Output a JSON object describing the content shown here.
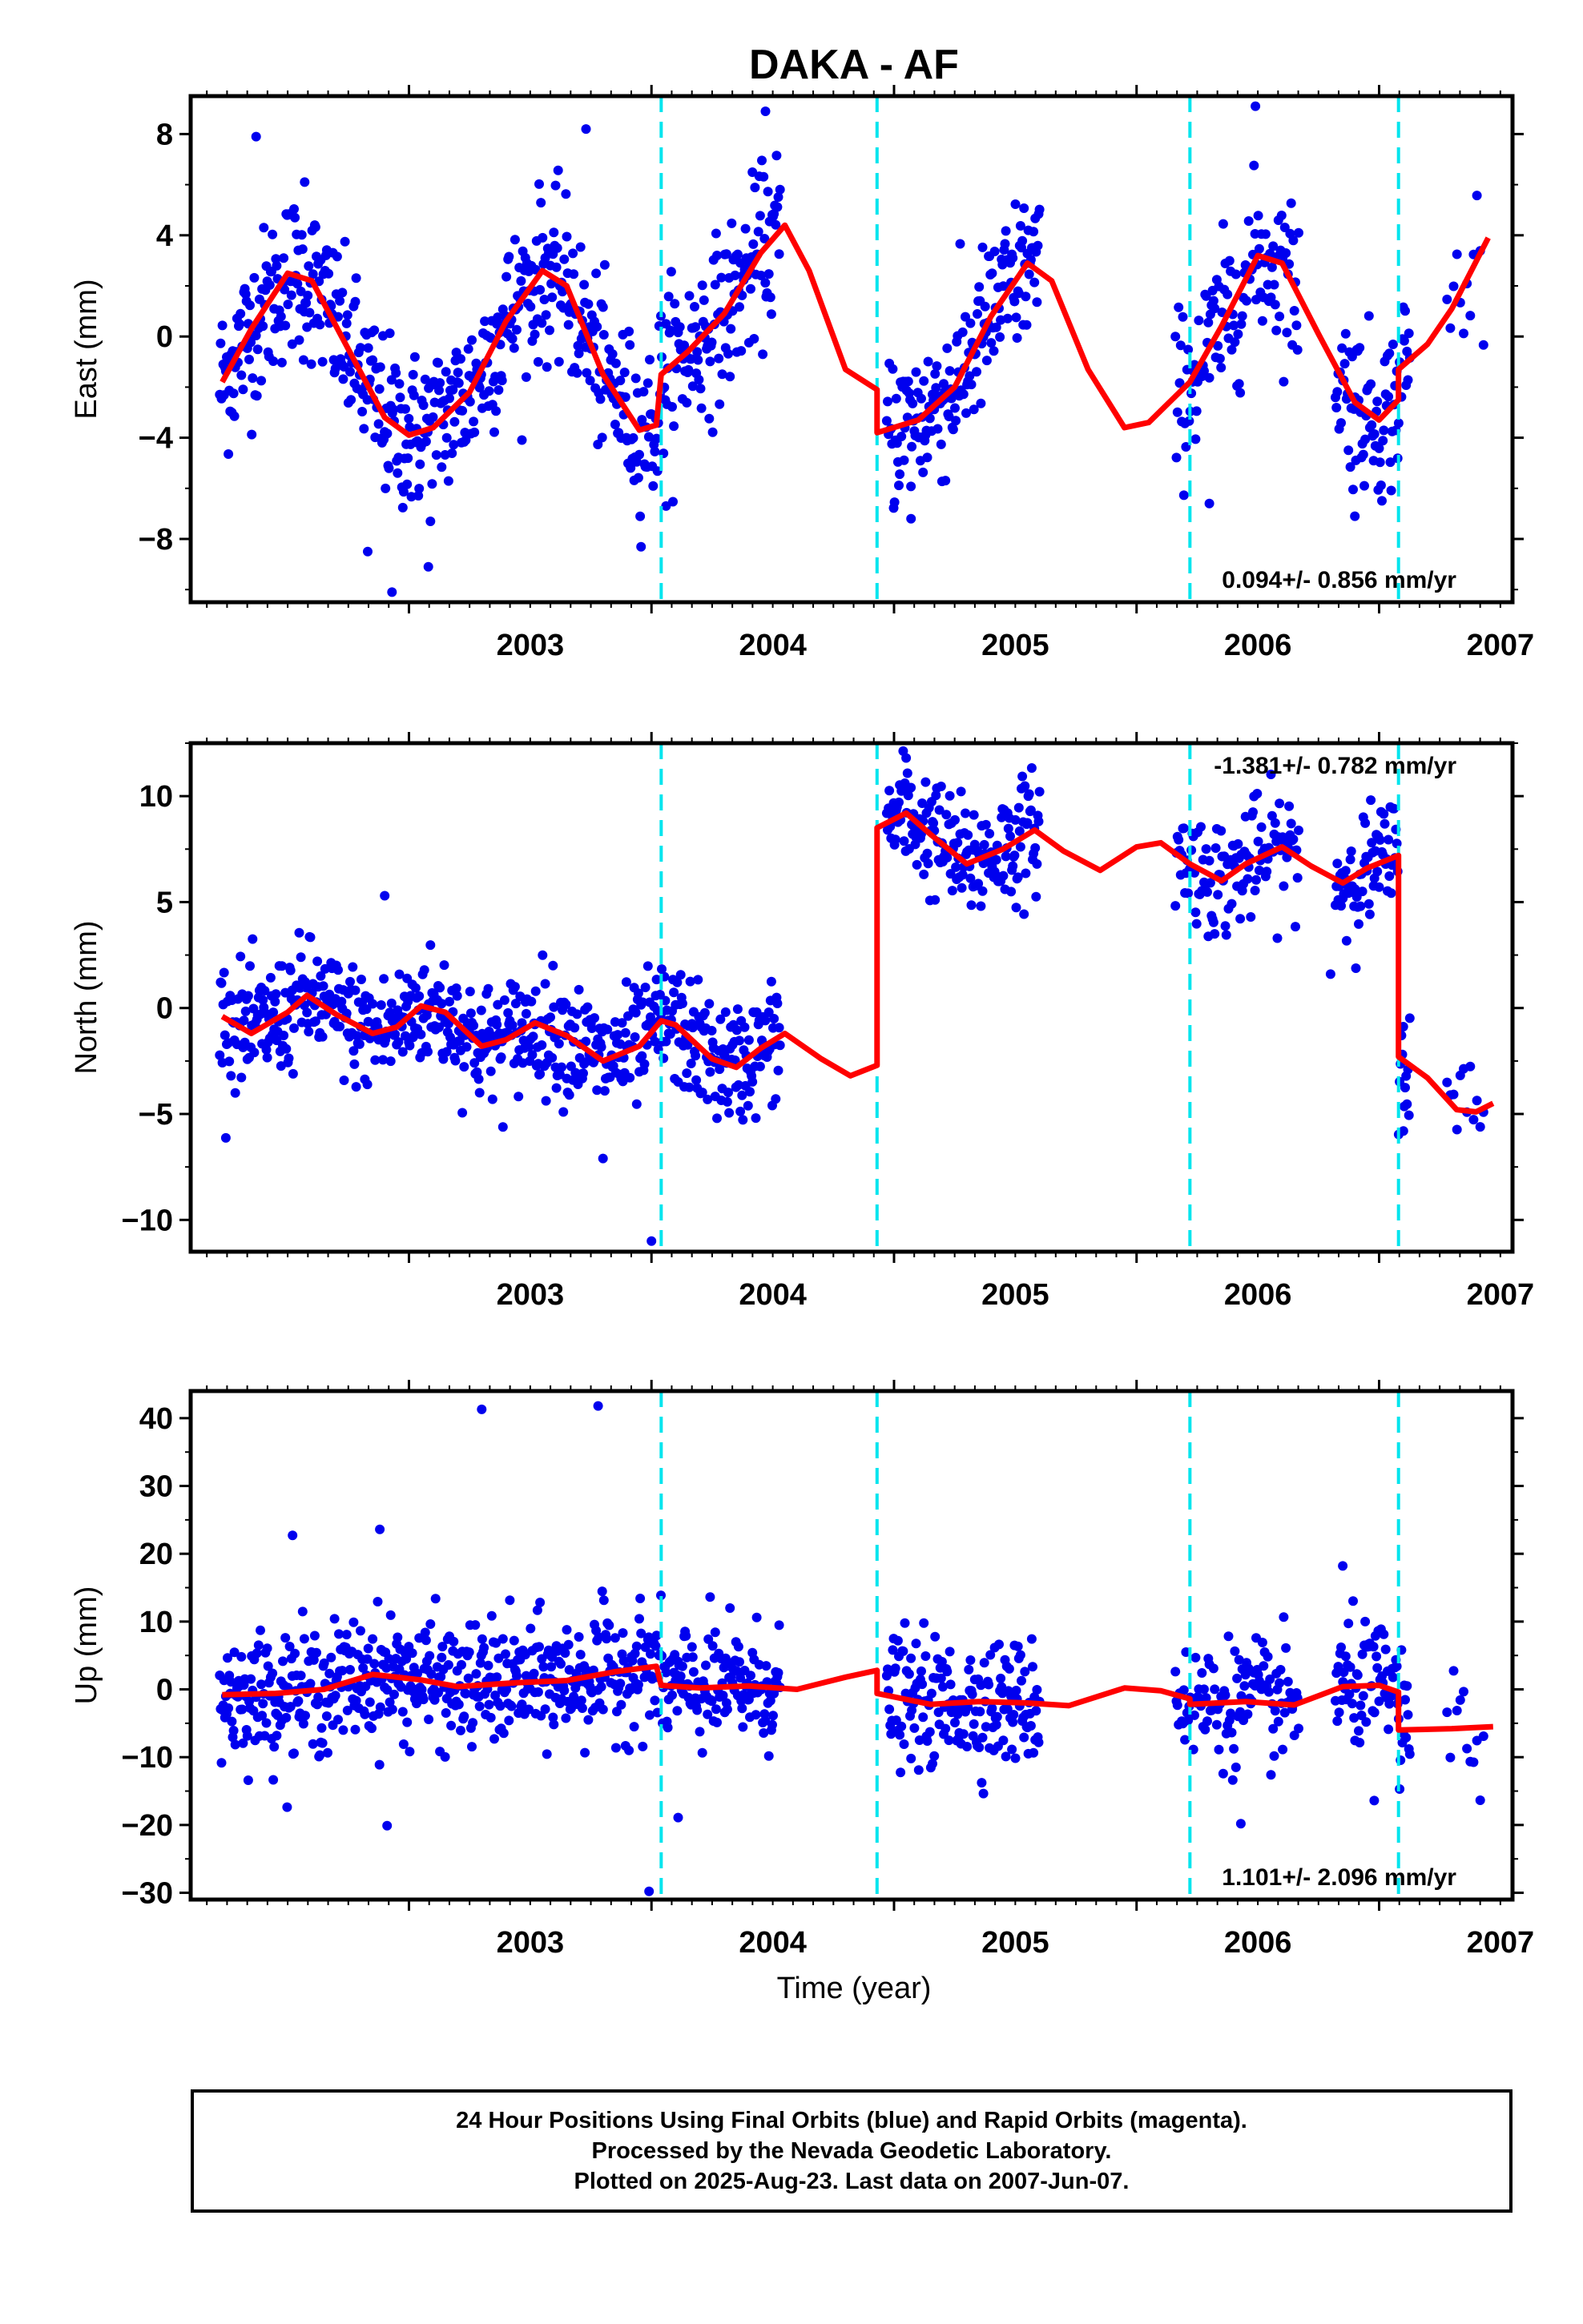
{
  "title": "DAKA - AF",
  "xlabel": "Time (year)",
  "caption": [
    "24 Hour Positions Using Final Orbits (blue) and Rapid Orbits (magenta).",
    "Processed by the Nevada Geodetic Laboratory.",
    "Plotted on 2025-Aug-23. Last data on 2007-Jun-07."
  ],
  "colors": {
    "data": "#0000ee",
    "model": "#ff0000",
    "offset_line": "#00e5ee",
    "frame": "#000000"
  },
  "chart_data": [
    {
      "type": "scatter",
      "component": "East",
      "ylabel": "East (mm)",
      "rate_label": "0.094+/- 0.856 mm/yr",
      "xlim": [
        2002.1,
        2007.55
      ],
      "ylim": [
        -10.5,
        9.5
      ],
      "yticks": [
        -8,
        -4,
        0,
        4,
        8
      ],
      "ytick_labels": [
        "−8",
        "−4",
        "0",
        "4",
        "8"
      ],
      "xticks": [
        2003,
        2004,
        2005,
        2006,
        2007
      ],
      "offset_epochs": [
        2004.04,
        2004.93,
        2006.22,
        2007.08
      ],
      "model": [
        [
          2002.23,
          -1.8
        ],
        [
          2002.35,
          0.3
        ],
        [
          2002.5,
          2.5
        ],
        [
          2002.6,
          2.2
        ],
        [
          2002.75,
          -0.5
        ],
        [
          2002.9,
          -3.2
        ],
        [
          2003.0,
          -3.9
        ],
        [
          2003.1,
          -3.6
        ],
        [
          2003.25,
          -2.2
        ],
        [
          2003.4,
          0.6
        ],
        [
          2003.55,
          2.6
        ],
        [
          2003.65,
          2.0
        ],
        [
          2003.8,
          -1.5
        ],
        [
          2003.95,
          -3.7
        ],
        [
          2004.02,
          -3.5
        ],
        [
          2004.04,
          -1.5
        ],
        [
          2004.15,
          -0.6
        ],
        [
          2004.3,
          0.9
        ],
        [
          2004.45,
          3.3
        ],
        [
          2004.55,
          4.4
        ],
        [
          2004.65,
          2.6
        ],
        [
          2004.8,
          -1.3
        ],
        [
          2004.93,
          -2.1
        ],
        [
          2004.93,
          -3.8
        ],
        [
          2005.1,
          -3.3
        ],
        [
          2005.25,
          -2.0
        ],
        [
          2005.4,
          0.8
        ],
        [
          2005.55,
          2.9
        ],
        [
          2005.65,
          2.2
        ],
        [
          2005.8,
          -1.3
        ],
        [
          2005.95,
          -3.6
        ],
        [
          2006.05,
          -3.4
        ],
        [
          2006.22,
          -1.8
        ],
        [
          2006.35,
          0.4
        ],
        [
          2006.5,
          3.2
        ],
        [
          2006.6,
          2.9
        ],
        [
          2006.75,
          0.1
        ],
        [
          2006.9,
          -2.6
        ],
        [
          2007.0,
          -3.3
        ],
        [
          2007.08,
          -2.5
        ],
        [
          2007.08,
          -1.3
        ],
        [
          2007.2,
          -0.3
        ],
        [
          2007.3,
          1.1
        ],
        [
          2007.45,
          3.9
        ]
      ],
      "extra_points": [
        [
          2002.37,
          7.9
        ],
        [
          2002.57,
          6.1
        ],
        [
          2002.93,
          -10.1
        ],
        [
          2002.83,
          -8.5
        ],
        [
          2003.08,
          -9.1
        ],
        [
          2003.73,
          8.2
        ],
        [
          2004.06,
          -6.7
        ],
        [
          2004.47,
          8.9
        ],
        [
          2005.07,
          -7.2
        ],
        [
          2006.3,
          -6.6
        ],
        [
          2006.49,
          9.1
        ],
        [
          2006.9,
          -7.1
        ]
      ]
    },
    {
      "type": "scatter",
      "component": "North",
      "ylabel": "North (mm)",
      "rate_label": "-1.381+/- 0.782 mm/yr",
      "xlim": [
        2002.1,
        2007.55
      ],
      "ylim": [
        -11.5,
        12.5
      ],
      "yticks": [
        -10,
        -5,
        0,
        5,
        10
      ],
      "ytick_labels": [
        "−10",
        "−5",
        "0",
        "5",
        "10"
      ],
      "xticks": [
        2003,
        2004,
        2005,
        2006,
        2007
      ],
      "offset_epochs": [
        2004.04,
        2004.93,
        2006.22,
        2007.08
      ],
      "model": [
        [
          2002.23,
          -0.4
        ],
        [
          2002.35,
          -1.2
        ],
        [
          2002.5,
          -0.2
        ],
        [
          2002.58,
          0.6
        ],
        [
          2002.7,
          -0.3
        ],
        [
          2002.85,
          -1.2
        ],
        [
          2002.95,
          -0.9
        ],
        [
          2003.05,
          0.1
        ],
        [
          2003.15,
          -0.2
        ],
        [
          2003.3,
          -1.8
        ],
        [
          2003.4,
          -1.5
        ],
        [
          2003.52,
          -0.7
        ],
        [
          2003.65,
          -1.3
        ],
        [
          2003.8,
          -2.5
        ],
        [
          2003.95,
          -1.8
        ],
        [
          2004.04,
          -0.6
        ],
        [
          2004.1,
          -0.8
        ],
        [
          2004.25,
          -2.4
        ],
        [
          2004.35,
          -2.8
        ],
        [
          2004.45,
          -1.9
        ],
        [
          2004.55,
          -1.2
        ],
        [
          2004.7,
          -2.4
        ],
        [
          2004.82,
          -3.2
        ],
        [
          2004.93,
          -2.7
        ],
        [
          2004.93,
          8.5
        ],
        [
          2005.05,
          9.2
        ],
        [
          2005.15,
          8.2
        ],
        [
          2005.3,
          6.8
        ],
        [
          2005.45,
          7.5
        ],
        [
          2005.58,
          8.4
        ],
        [
          2005.7,
          7.4
        ],
        [
          2005.85,
          6.5
        ],
        [
          2006.0,
          7.6
        ],
        [
          2006.1,
          7.8
        ],
        [
          2006.22,
          6.8
        ],
        [
          2006.35,
          6.0
        ],
        [
          2006.45,
          6.8
        ],
        [
          2006.6,
          7.6
        ],
        [
          2006.72,
          6.7
        ],
        [
          2006.85,
          5.9
        ],
        [
          2006.95,
          6.6
        ],
        [
          2007.08,
          7.2
        ],
        [
          2007.08,
          -2.3
        ],
        [
          2007.2,
          -3.3
        ],
        [
          2007.32,
          -4.8
        ],
        [
          2007.4,
          -4.9
        ],
        [
          2007.47,
          -4.5
        ]
      ],
      "extra_points": [
        [
          2002.9,
          5.3
        ],
        [
          2003.8,
          -7.1
        ],
        [
          2004.0,
          -11.0
        ],
        [
          2005.05,
          11.8
        ],
        [
          2006.8,
          1.6
        ],
        [
          2007.1,
          -5.8
        ]
      ]
    },
    {
      "type": "scatter",
      "component": "Up",
      "ylabel": "Up (mm)",
      "rate_label": "1.101+/- 2.096 mm/yr",
      "xlim": [
        2002.1,
        2007.55
      ],
      "ylim": [
        -31,
        44
      ],
      "yticks": [
        -30,
        -20,
        -10,
        0,
        10,
        20,
        30,
        40
      ],
      "ytick_labels": [
        "−30",
        "−20",
        "−10",
        "0",
        "10",
        "20",
        "30",
        "40"
      ],
      "xticks": [
        2003,
        2004,
        2005,
        2006,
        2007
      ],
      "offset_epochs": [
        2004.04,
        2004.93,
        2006.22,
        2007.08
      ],
      "model": [
        [
          2002.23,
          -0.8
        ],
        [
          2002.45,
          -0.6
        ],
        [
          2002.65,
          0.0
        ],
        [
          2002.85,
          2.2
        ],
        [
          2003.05,
          1.4
        ],
        [
          2003.2,
          0.4
        ],
        [
          2003.45,
          1.0
        ],
        [
          2003.65,
          1.3
        ],
        [
          2003.85,
          2.6
        ],
        [
          2004.02,
          3.4
        ],
        [
          2004.04,
          0.6
        ],
        [
          2004.2,
          0.2
        ],
        [
          2004.4,
          0.5
        ],
        [
          2004.6,
          0.0
        ],
        [
          2004.8,
          1.8
        ],
        [
          2004.93,
          2.8
        ],
        [
          2004.93,
          -0.6
        ],
        [
          2005.15,
          -2.2
        ],
        [
          2005.35,
          -1.8
        ],
        [
          2005.55,
          -2.0
        ],
        [
          2005.72,
          -2.4
        ],
        [
          2005.95,
          0.2
        ],
        [
          2006.1,
          -0.2
        ],
        [
          2006.22,
          -1.4
        ],
        [
          2006.22,
          -2.2
        ],
        [
          2006.45,
          -1.8
        ],
        [
          2006.65,
          -2.3
        ],
        [
          2006.85,
          0.4
        ],
        [
          2007.0,
          0.6
        ],
        [
          2007.08,
          -0.4
        ],
        [
          2007.08,
          -6.0
        ],
        [
          2007.3,
          -5.8
        ],
        [
          2007.47,
          -5.5
        ]
      ],
      "extra_points": [
        [
          2003.3,
          41.3
        ],
        [
          2003.78,
          41.8
        ],
        [
          2002.88,
          23.6
        ],
        [
          2002.52,
          22.7
        ],
        [
          2002.91,
          -20.1
        ],
        [
          2003.99,
          -29.8
        ],
        [
          2004.11,
          -18.9
        ],
        [
          2005.07,
          -10.2
        ],
        [
          2006.43,
          -19.8
        ],
        [
          2006.85,
          18.2
        ],
        [
          2006.98,
          -16.4
        ]
      ]
    }
  ],
  "scatter_segments": [
    {
      "comment_free": true,
      "from": 2002.22,
      "to": 2004.53,
      "step_days": 1.3
    },
    {
      "from": 2004.97,
      "to": 2005.6,
      "step_days": 1.3
    },
    {
      "from": 2006.16,
      "to": 2006.67,
      "step_days": 1.6
    },
    {
      "from": 2006.82,
      "to": 2007.13,
      "step_days": 1.4
    },
    {
      "from": 2007.28,
      "to": 2007.44,
      "step_days": 5
    }
  ],
  "scatter_spread_mm": [
    1.6,
    1.4,
    4.5
  ]
}
